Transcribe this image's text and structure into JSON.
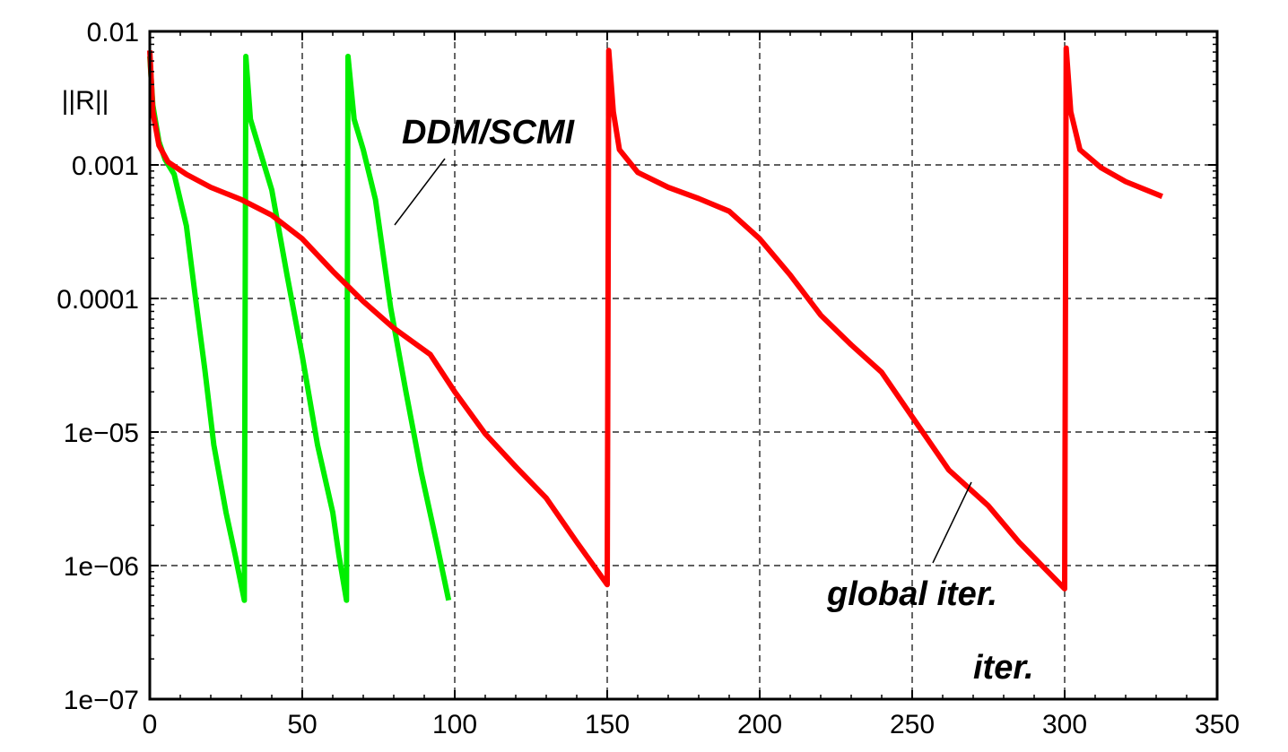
{
  "chart_data": {
    "type": "line",
    "yscale": "log",
    "xlim": [
      0,
      350
    ],
    "ylim": [
      1e-07,
      0.01
    ],
    "grid": true,
    "ylabel": "||R||",
    "xlabel": "",
    "x_ticks": [
      "0",
      "50",
      "100",
      "150",
      "200",
      "250",
      "300",
      "350"
    ],
    "y_ticks": [
      "0.01",
      "0.001",
      "0.0001",
      "1e−05",
      "1e−06",
      "1e−07"
    ],
    "series": [
      {
        "color": "#00ee00",
        "points": [
          [
            0,
            0.0065
          ],
          [
            1,
            0.0028
          ],
          [
            3,
            0.0015
          ],
          [
            5,
            0.0011
          ],
          [
            8,
            0.00085
          ],
          [
            12,
            0.00035
          ],
          [
            15,
            0.0001
          ],
          [
            18,
            3e-05
          ],
          [
            21,
            8e-06
          ],
          [
            25,
            2.5e-06
          ],
          [
            28,
            1.2e-06
          ],
          [
            31,
            5.5e-07
          ],
          [
            31.5,
            0.0065
          ],
          [
            33,
            0.0022
          ],
          [
            36,
            0.0013
          ],
          [
            40,
            0.00065
          ],
          [
            45,
            0.00015
          ],
          [
            50,
            3.7e-05
          ],
          [
            55,
            8e-06
          ],
          [
            60,
            2.5e-06
          ],
          [
            62,
            1.2e-06
          ],
          [
            64.5,
            5.5e-07
          ],
          [
            65,
            0.0065
          ],
          [
            67,
            0.0022
          ],
          [
            70,
            0.0013
          ],
          [
            74,
            0.00055
          ],
          [
            79,
            8.5e-05
          ],
          [
            84,
            2e-05
          ],
          [
            89,
            5e-06
          ],
          [
            94,
            1.5e-06
          ],
          [
            98,
            5.5e-07
          ]
        ]
      },
      {
        "color": "#ff0000",
        "points": [
          [
            0,
            0.0072
          ],
          [
            1,
            0.0025
          ],
          [
            3,
            0.0014
          ],
          [
            6,
            0.00105
          ],
          [
            12,
            0.00085
          ],
          [
            20,
            0.00068
          ],
          [
            30,
            0.00055
          ],
          [
            40,
            0.00042
          ],
          [
            50,
            0.00028
          ],
          [
            60,
            0.00016
          ],
          [
            70,
            9.5e-05
          ],
          [
            80,
            6e-05
          ],
          [
            92,
            3.8e-05
          ],
          [
            100,
            2e-05
          ],
          [
            110,
            9.7e-06
          ],
          [
            120,
            5.5e-06
          ],
          [
            130,
            3.2e-06
          ],
          [
            140,
            1.5e-06
          ],
          [
            150,
            7.2e-07
          ],
          [
            150.5,
            0.0072
          ],
          [
            152,
            0.0025
          ],
          [
            154,
            0.0013
          ],
          [
            160,
            0.00088
          ],
          [
            170,
            0.00068
          ],
          [
            180,
            0.00056
          ],
          [
            190,
            0.00045
          ],
          [
            200,
            0.00028
          ],
          [
            210,
            0.00015
          ],
          [
            220,
            7.5e-05
          ],
          [
            230,
            4.5e-05
          ],
          [
            240,
            2.8e-05
          ],
          [
            250,
            1.3e-05
          ],
          [
            262,
            5.2e-06
          ],
          [
            275,
            2.8e-06
          ],
          [
            285,
            1.5e-06
          ],
          [
            300,
            6.7e-07
          ],
          [
            300.5,
            0.0075
          ],
          [
            302,
            0.0025
          ],
          [
            305,
            0.0013
          ],
          [
            312,
            0.00095
          ],
          [
            320,
            0.00075
          ],
          [
            332,
            0.00058
          ]
        ]
      }
    ],
    "annotations": [
      "DDM/SCMI",
      "global iter.",
      "iter."
    ]
  }
}
